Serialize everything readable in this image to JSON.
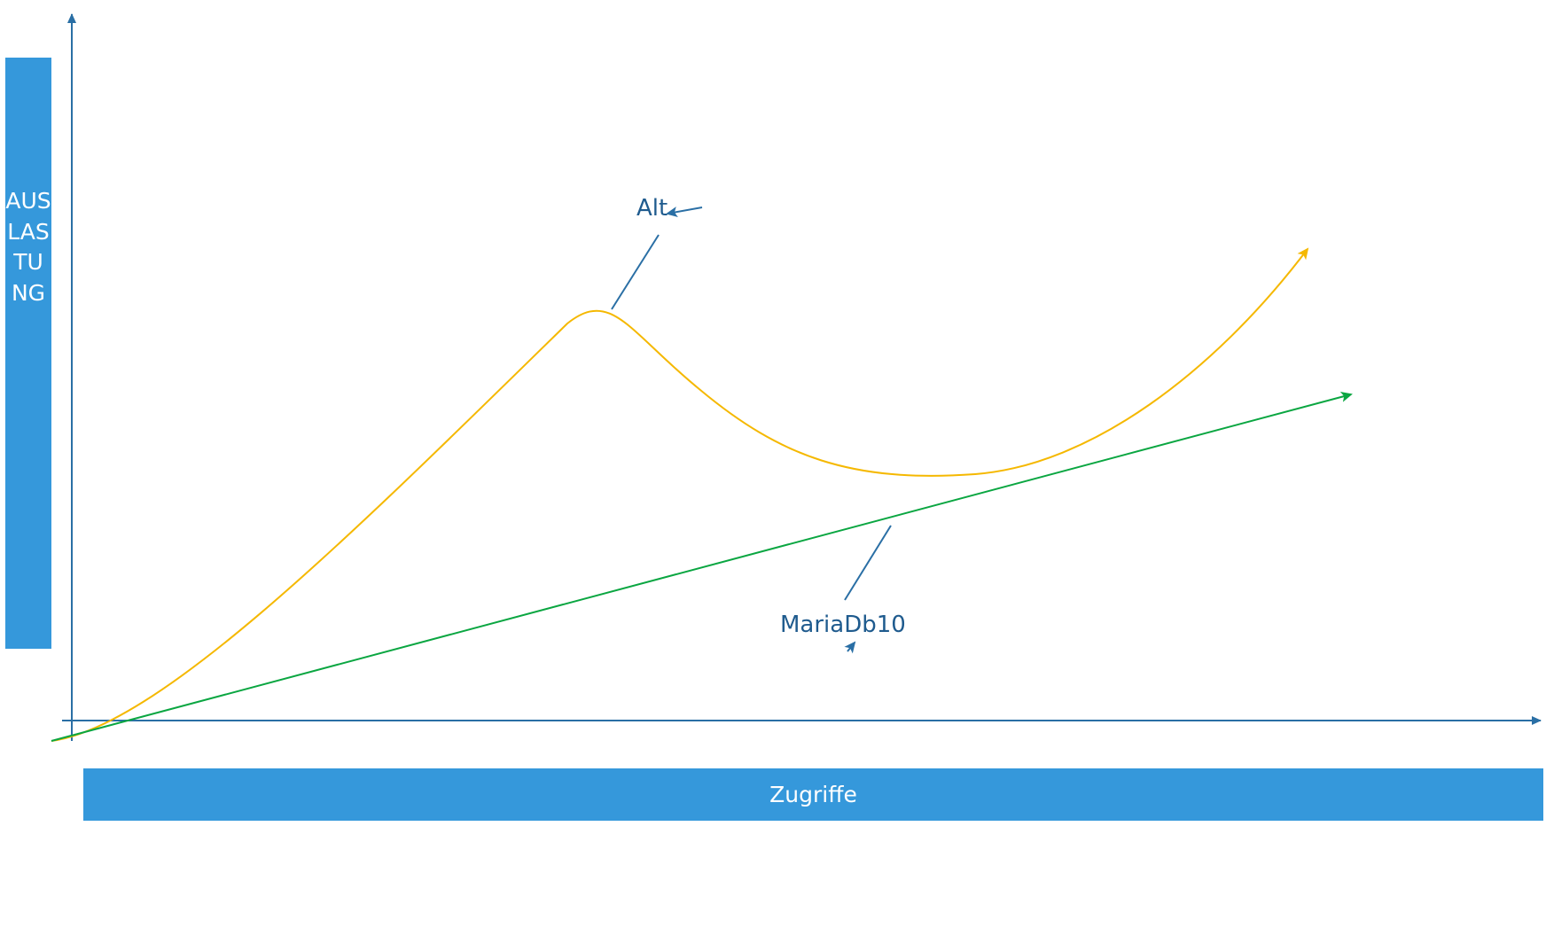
{
  "axes": {
    "y_label": "AUSLASTUNG",
    "x_label": "Zugriffe"
  },
  "series": [
    {
      "name": "Alt",
      "color": "#f5b800"
    },
    {
      "name": "MariaDb10",
      "color": "#0aa641"
    }
  ],
  "colors": {
    "axis": "#2a6fa5",
    "label_bar": "#3598db",
    "callout_text": "#1f5b8e"
  }
}
